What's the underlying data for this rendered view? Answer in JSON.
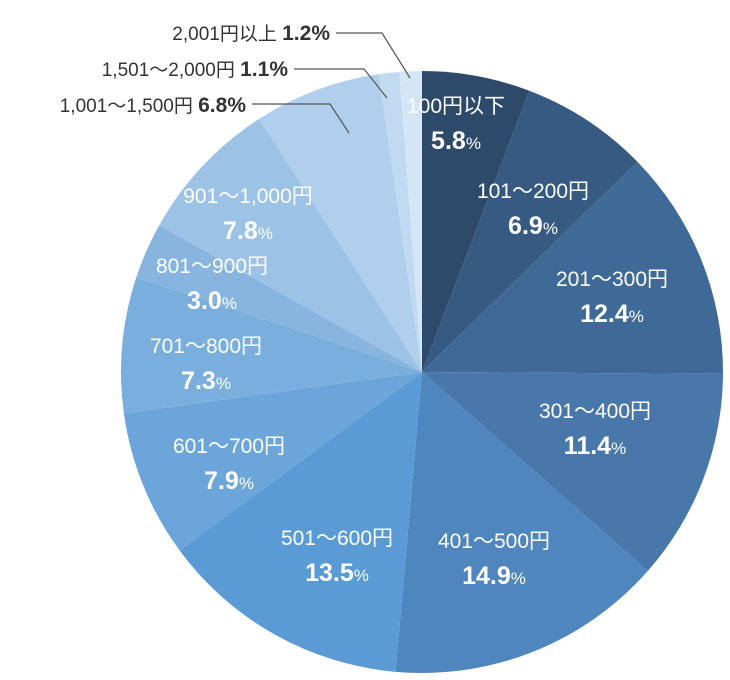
{
  "chart_data": {
    "type": "pie",
    "start_angle_deg": 0,
    "direction": "clockwise",
    "categories": [
      "100円以下",
      "101〜200円",
      "201〜300円",
      "301〜400円",
      "401〜500円",
      "501〜600円",
      "601〜700円",
      "701〜800円",
      "801〜900円",
      "901〜1,000円",
      "1,001〜1,500円",
      "1,501〜2,000円",
      "2,001円以上"
    ],
    "values": [
      5.8,
      6.9,
      12.4,
      11.4,
      14.9,
      13.5,
      7.9,
      7.3,
      3.0,
      7.8,
      6.8,
      1.1,
      1.2
    ],
    "value_labels": [
      "5.8",
      "6.9",
      "12.4",
      "11.4",
      "14.9",
      "13.5",
      "7.9",
      "7.3",
      "3.0",
      "7.8",
      "6.8",
      "1.1",
      "1.2"
    ],
    "unit": "%",
    "colors": [
      "#2e4a6b",
      "#365a82",
      "#3f6a98",
      "#4877aa",
      "#4f86be",
      "#5a9bd5",
      "#6ba5da",
      "#7aaedc",
      "#87b5df",
      "#9cc2e6",
      "#b0cfed",
      "#c2daf1",
      "#d4e5f6"
    ],
    "outside_labels": [
      10,
      11,
      12
    ],
    "title": "",
    "xlabel": "",
    "ylabel": "",
    "legend": "none"
  }
}
